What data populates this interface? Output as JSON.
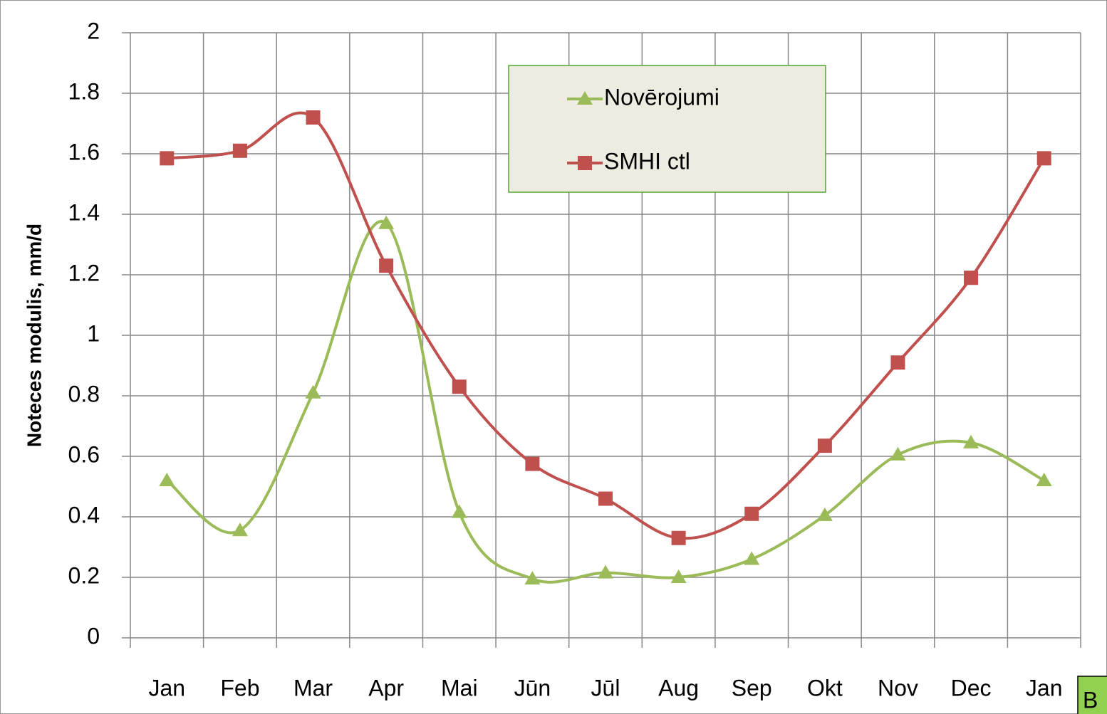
{
  "chart_data": {
    "type": "line",
    "y_label": "Noteces modulis, mm/d",
    "categories": [
      "Jan",
      "Feb",
      "Mar",
      "Apr",
      "Mai",
      "Jūn",
      "Jūl",
      "Aug",
      "Sep",
      "Okt",
      "Nov",
      "Dec",
      "Jan"
    ],
    "series": [
      {
        "name": "Novērojumi",
        "color": "#9bbb59",
        "marker": "triangle",
        "values": [
          0.52,
          0.355,
          0.81,
          1.37,
          0.415,
          0.195,
          0.215,
          0.2,
          0.26,
          0.405,
          0.605,
          0.645,
          0.52
        ]
      },
      {
        "name": "SMHI ctl",
        "color": "#c0504d",
        "marker": "square",
        "values": [
          1.585,
          1.61,
          1.72,
          1.23,
          0.83,
          0.575,
          0.46,
          0.33,
          0.41,
          0.635,
          0.91,
          1.19,
          1.585
        ]
      }
    ],
    "ylim": [
      0,
      2
    ],
    "yticks": [
      0,
      0.2,
      0.4,
      0.6,
      0.8,
      1,
      1.2,
      1.4,
      1.6,
      1.8,
      2
    ],
    "grid": true,
    "smooth": true,
    "legend": "top-center",
    "corner_label": "B"
  }
}
